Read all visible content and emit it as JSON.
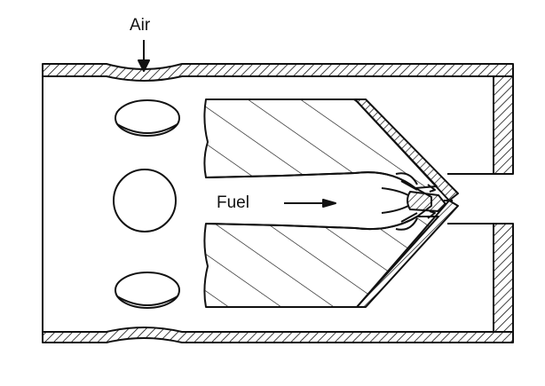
{
  "labels": {
    "air": "Air",
    "fuel": "Fuel"
  },
  "colors": {
    "ink": "#111111",
    "background": "#ffffff"
  }
}
